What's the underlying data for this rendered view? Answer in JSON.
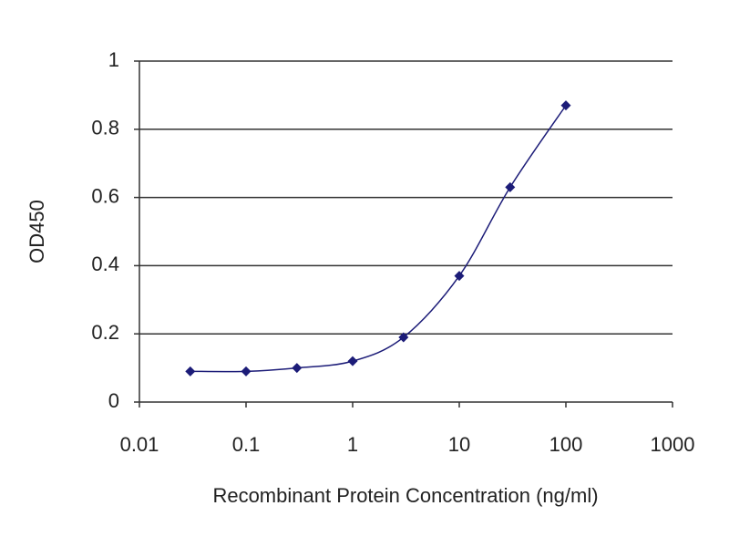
{
  "chart_data": {
    "type": "line",
    "x_label": "Recombinant Protein Concentration (ng/ml)",
    "y_label": "OD450",
    "x": [
      0.03,
      0.1,
      0.3,
      1,
      3,
      10,
      30,
      100
    ],
    "series": [
      {
        "color": "#1c1c78",
        "values": [
          0.09,
          0.09,
          0.1,
          0.12,
          0.19,
          0.37,
          0.63,
          0.87
        ]
      }
    ],
    "xlim": [
      0.01,
      1000
    ],
    "xticks": [
      0.01,
      0.1,
      1,
      10,
      100,
      1000
    ],
    "xscale": "log",
    "ylim": [
      0,
      1
    ],
    "yticks": [
      0,
      0.2,
      0.4,
      0.6,
      0.8,
      1
    ],
    "grid": true
  }
}
